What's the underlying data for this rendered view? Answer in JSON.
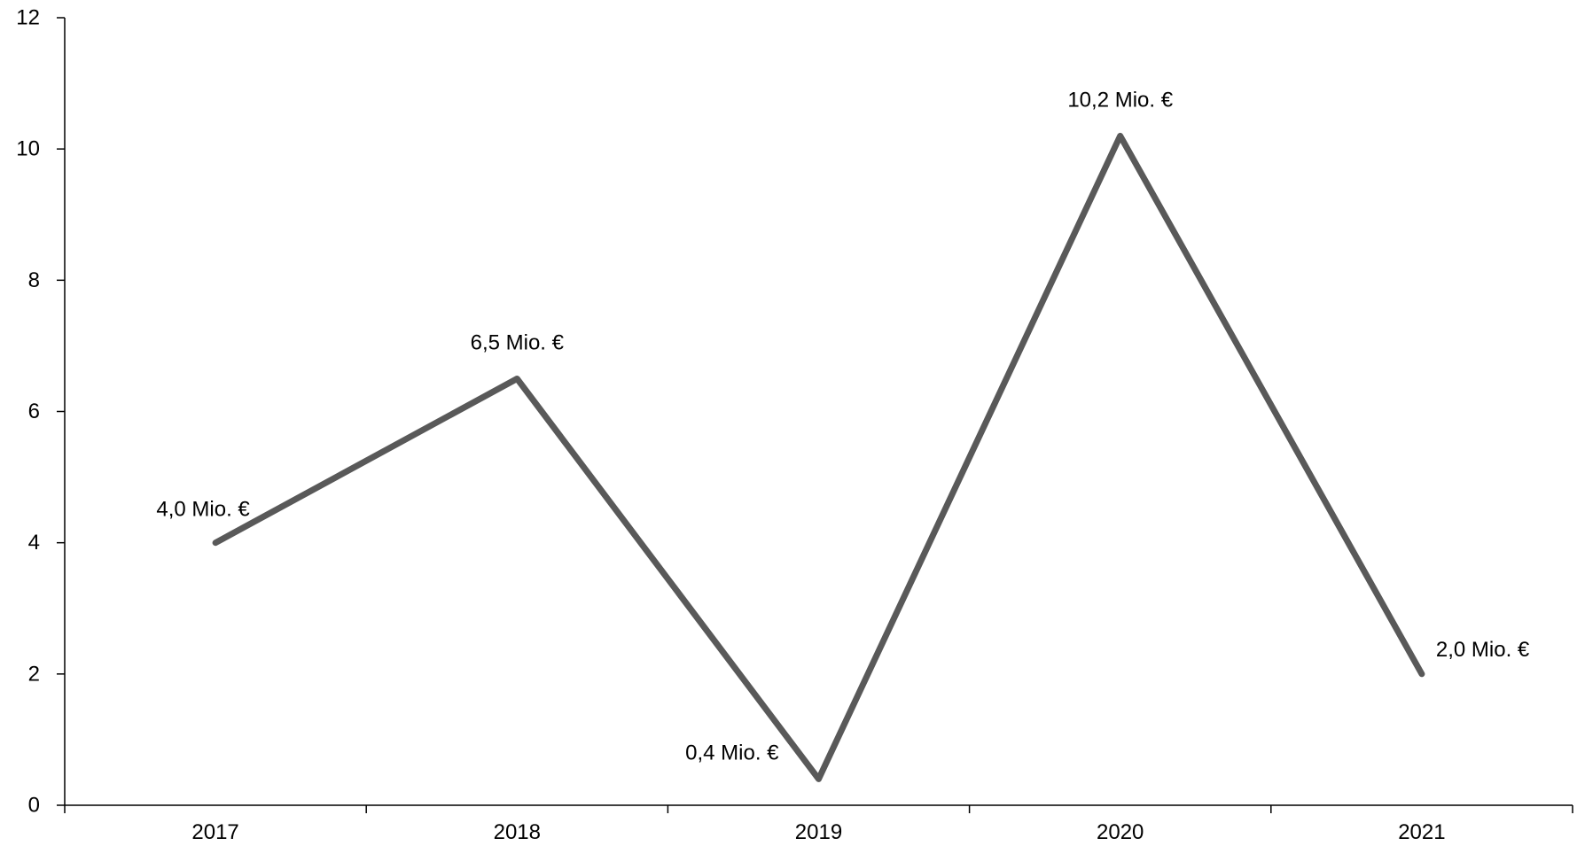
{
  "chart_data": {
    "type": "line",
    "categories": [
      "2017",
      "2018",
      "2019",
      "2020",
      "2021"
    ],
    "series": [
      {
        "values": [
          4.0,
          6.5,
          0.4,
          10.2,
          2.0
        ]
      }
    ],
    "data_labels": [
      "4,0 Mio. €",
      "6,5 Mio. €",
      "0,4 Mio. €",
      "10,2 Mio. €",
      "2,0 Mio. €"
    ],
    "y_ticks": [
      "0",
      "2",
      "4",
      "6",
      "8",
      "10",
      "12"
    ],
    "ylim": [
      0,
      12
    ],
    "xlabel": "",
    "ylabel": "",
    "title": "",
    "grid": false,
    "line_color": "#595959"
  }
}
